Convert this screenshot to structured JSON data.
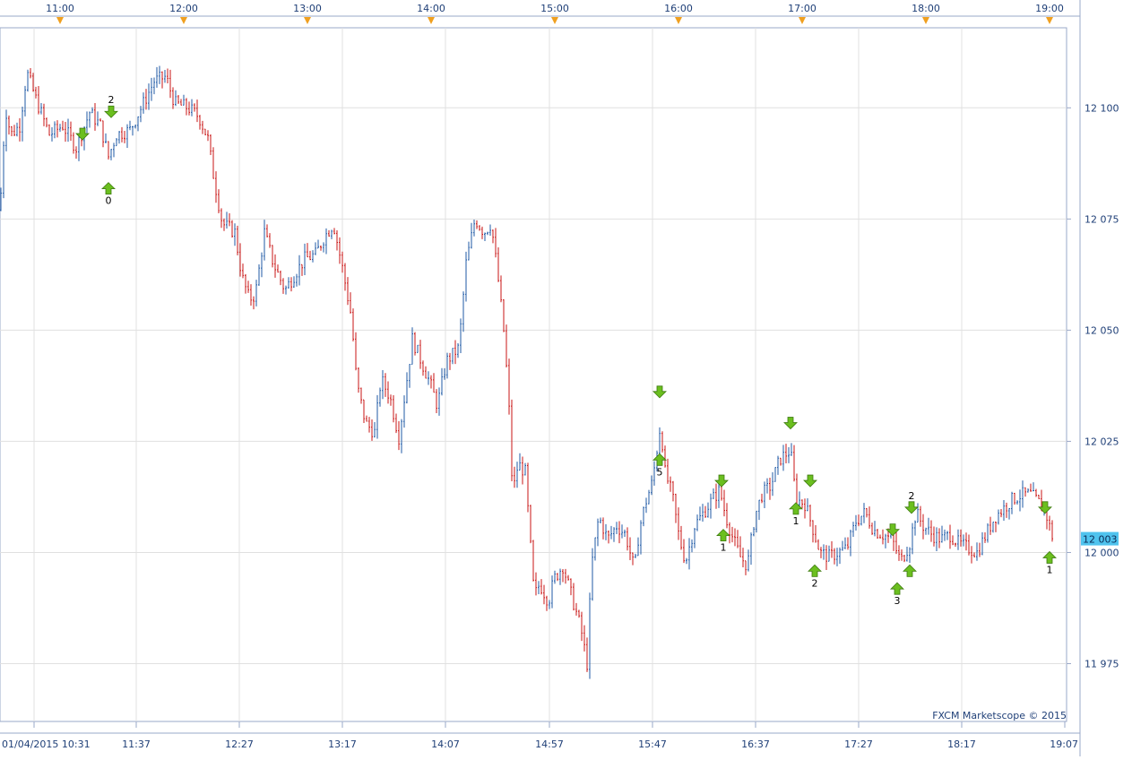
{
  "chart_data": {
    "type": "candlestick",
    "watermark": "FXCM Marketscope © 2015",
    "current_price_label": "12 003",
    "current_price": 12003,
    "ylim": [
      11962,
      12118
    ],
    "y_ticks": [
      {
        "value": 12100,
        "label": "12 100"
      },
      {
        "value": 12075,
        "label": "12 075"
      },
      {
        "value": 12050,
        "label": "12 050"
      },
      {
        "value": 12025,
        "label": "12 025"
      },
      {
        "value": 12000,
        "label": "12 000"
      },
      {
        "value": 11975,
        "label": "11 975"
      }
    ],
    "top_time_labels": [
      "11:00",
      "12:00",
      "13:00",
      "14:00",
      "15:00",
      "16:00",
      "17:00",
      "18:00",
      "19:00"
    ],
    "bottom_time_labels": [
      "01/04/2015 10:31",
      "11:37",
      "12:27",
      "13:17",
      "14:07",
      "14:57",
      "15:47",
      "16:37",
      "17:27",
      "18:17",
      "19:07"
    ],
    "grid": true,
    "colors": {
      "up": "#1f5aa6",
      "down": "#c81414",
      "grid": "#e0e0e0",
      "marker_top": "#f0a020",
      "price_label_bg": "#4fc3ee",
      "signal_arrow": "#6bbf1f"
    },
    "price_path": [
      [
        0,
        12077
      ],
      [
        6,
        12100
      ],
      [
        12,
        12094
      ],
      [
        22,
        12096
      ],
      [
        30,
        12108
      ],
      [
        40,
        12102
      ],
      [
        55,
        12094
      ],
      [
        70,
        12096
      ],
      [
        85,
        12091
      ],
      [
        100,
        12099
      ],
      [
        112,
        12096
      ],
      [
        121,
        12089
      ],
      [
        130,
        12094
      ],
      [
        145,
        12095
      ],
      [
        160,
        12101
      ],
      [
        172,
        12106
      ],
      [
        185,
        12107
      ],
      [
        195,
        12101
      ],
      [
        210,
        12100
      ],
      [
        222,
        12098
      ],
      [
        232,
        12093
      ],
      [
        238,
        12085
      ],
      [
        248,
        12074
      ],
      [
        262,
        12072
      ],
      [
        270,
        12062
      ],
      [
        278,
        12057
      ],
      [
        285,
        12058
      ],
      [
        295,
        12072
      ],
      [
        305,
        12065
      ],
      [
        318,
        12059
      ],
      [
        330,
        12063
      ],
      [
        340,
        12066
      ],
      [
        352,
        12067
      ],
      [
        362,
        12071
      ],
      [
        372,
        12074
      ],
      [
        382,
        12064
      ],
      [
        392,
        12053
      ],
      [
        398,
        12038
      ],
      [
        408,
        12029
      ],
      [
        418,
        12027
      ],
      [
        425,
        12039
      ],
      [
        435,
        12035
      ],
      [
        445,
        12026
      ],
      [
        452,
        12036
      ],
      [
        460,
        12048
      ],
      [
        470,
        12043
      ],
      [
        480,
        12038
      ],
      [
        488,
        12033
      ],
      [
        498,
        12043
      ],
      [
        512,
        12046
      ],
      [
        520,
        12065
      ],
      [
        530,
        12075
      ],
      [
        540,
        12072
      ],
      [
        548,
        12074
      ],
      [
        555,
        12063
      ],
      [
        563,
        12048
      ],
      [
        568,
        12032
      ],
      [
        572,
        12013
      ],
      [
        578,
        12020
      ],
      [
        586,
        12018
      ],
      [
        596,
        11990
      ],
      [
        602,
        11993
      ],
      [
        612,
        11989
      ],
      [
        618,
        11994
      ],
      [
        628,
        11997
      ],
      [
        638,
        11990
      ],
      [
        648,
        11983
      ],
      [
        655,
        11975
      ],
      [
        660,
        11997
      ],
      [
        668,
        12008
      ],
      [
        678,
        12003
      ],
      [
        688,
        12006
      ],
      [
        698,
        12004
      ],
      [
        708,
        11996
      ],
      [
        713,
        12005
      ],
      [
        720,
        12011
      ],
      [
        728,
        12016
      ],
      [
        737,
        12029
      ],
      [
        742,
        12018
      ],
      [
        750,
        12013
      ],
      [
        758,
        12003
      ],
      [
        765,
        11998
      ],
      [
        775,
        12006
      ],
      [
        785,
        12009
      ],
      [
        795,
        12012
      ],
      [
        803,
        12014
      ],
      [
        810,
        12008
      ],
      [
        818,
        12003
      ],
      [
        826,
        11999
      ],
      [
        834,
        11997
      ],
      [
        842,
        12008
      ],
      [
        850,
        12013
      ],
      [
        860,
        12015
      ],
      [
        870,
        12021
      ],
      [
        882,
        12023
      ],
      [
        888,
        12012
      ],
      [
        898,
        12011
      ],
      [
        906,
        12006
      ],
      [
        915,
        12000
      ],
      [
        925,
        11999
      ],
      [
        935,
        12000
      ],
      [
        945,
        12001
      ],
      [
        955,
        12007
      ],
      [
        965,
        12009
      ],
      [
        975,
        12005
      ],
      [
        985,
        12004
      ],
      [
        995,
        12003
      ],
      [
        1005,
        11998
      ],
      [
        1015,
        12002
      ],
      [
        1022,
        12009
      ],
      [
        1030,
        12006
      ],
      [
        1040,
        12004
      ],
      [
        1050,
        12003
      ],
      [
        1060,
        12004
      ],
      [
        1070,
        12002
      ],
      [
        1080,
        12001
      ],
      [
        1090,
        12000
      ],
      [
        1100,
        12004
      ],
      [
        1110,
        12008
      ],
      [
        1120,
        12010
      ],
      [
        1130,
        12012
      ],
      [
        1140,
        12013
      ],
      [
        1150,
        12013
      ],
      [
        1160,
        12011
      ],
      [
        1168,
        12008
      ],
      [
        1175,
        12003
      ]
    ],
    "signals": [
      {
        "direction": "down",
        "price": 12093
      },
      {
        "direction": "down",
        "price": 12098,
        "label": "2"
      },
      {
        "direction": "up",
        "price": 12083,
        "label": "0"
      },
      {
        "direction": "down",
        "price": 12035
      },
      {
        "direction": "up",
        "price": 12022,
        "label": "5"
      },
      {
        "direction": "down",
        "price": 12015
      },
      {
        "direction": "up",
        "price": 12005,
        "label": "1"
      },
      {
        "direction": "down",
        "price": 12028
      },
      {
        "direction": "up",
        "price": 12011,
        "label": "1"
      },
      {
        "direction": "down",
        "price": 12015
      },
      {
        "direction": "up",
        "price": 11997,
        "label": "2"
      },
      {
        "direction": "down",
        "price": 12004
      },
      {
        "direction": "up",
        "price": 11993,
        "label": "3"
      },
      {
        "direction": "up",
        "price": 11997
      },
      {
        "direction": "down",
        "price": 12009,
        "label": "2"
      },
      {
        "direction": "down",
        "price": 12009
      },
      {
        "direction": "up",
        "price": 12000,
        "label": "1"
      }
    ]
  }
}
